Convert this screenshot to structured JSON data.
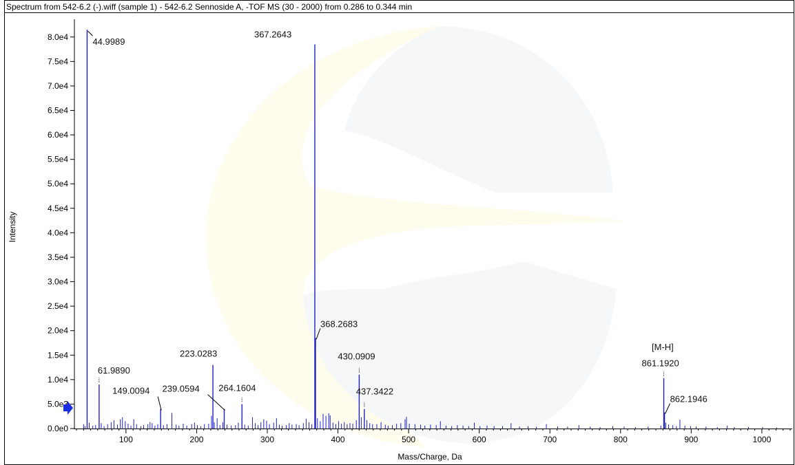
{
  "chart_data": {
    "type": "bar",
    "title": "Spectrum from 542-6.2 (-).wiff (sample 1) - 542-6.2 Sennoside A, -TOF MS (30 - 2000) from 0.286 to 0.344 min",
    "xlabel": "Mass/Charge, Da",
    "ylabel": "Intensity",
    "xlim": [
      27,
      1043
    ],
    "ylim": [
      0,
      82500
    ],
    "x_ticks": [
      100,
      200,
      300,
      400,
      500,
      600,
      700,
      800,
      900,
      1000
    ],
    "x_tick_labels": [
      "100",
      "200",
      "300",
      "400",
      "500",
      "600",
      "700",
      "800",
      "900",
      "1000"
    ],
    "y_ticks": [
      0,
      5000,
      10000,
      15000,
      20000,
      25000,
      30000,
      35000,
      40000,
      45000,
      50000,
      55000,
      60000,
      65000,
      70000,
      75000,
      80000
    ],
    "y_tick_labels": [
      "0.0e0",
      "5.0e3",
      "1.0e4",
      "1.5e4",
      "2.0e4",
      "2.5e4",
      "3.0e4",
      "3.5e4",
      "4.0e4",
      "4.5e4",
      "5.0e4",
      "5.5e4",
      "6.0e4",
      "6.5e4",
      "7.0e4",
      "7.5e4",
      "8.0e4"
    ],
    "grid": false,
    "line_color": "#1f1fc8",
    "labeled_peaks": [
      {
        "mz": 44.9989,
        "intensity": 81500,
        "label": "44.9989"
      },
      {
        "mz": 61.989,
        "intensity": 9000,
        "label": "61.9890"
      },
      {
        "mz": 149.0094,
        "intensity": 4000,
        "label": "149.0094"
      },
      {
        "mz": 223.0283,
        "intensity": 13000,
        "label": "223.0283"
      },
      {
        "mz": 239.0594,
        "intensity": 4000,
        "label": "239.0594"
      },
      {
        "mz": 264.1604,
        "intensity": 5000,
        "label": "264.1604"
      },
      {
        "mz": 367.2643,
        "intensity": 78500,
        "label": "367.2643"
      },
      {
        "mz": 368.2683,
        "intensity": 18500,
        "label": "368.2683"
      },
      {
        "mz": 430.0909,
        "intensity": 11000,
        "label": "430.0909"
      },
      {
        "mz": 437.3422,
        "intensity": 4000,
        "label": "437.3422"
      },
      {
        "mz": 861.192,
        "intensity": 10300,
        "label": "861.1920"
      },
      {
        "mz": 862.1946,
        "intensity": 3300,
        "label": "862.1946"
      }
    ],
    "annotation_text": "[M-H]",
    "minor_peaks": [
      [
        40,
        900
      ],
      [
        42,
        500
      ],
      [
        48,
        1200
      ],
      [
        53,
        600
      ],
      [
        57,
        700
      ],
      [
        65,
        1100
      ],
      [
        69,
        500
      ],
      [
        74,
        900
      ],
      [
        79,
        1300
      ],
      [
        83,
        1700
      ],
      [
        88,
        800
      ],
      [
        92,
        1900
      ],
      [
        95,
        2300
      ],
      [
        99,
        1500
      ],
      [
        103,
        1000
      ],
      [
        107,
        600
      ],
      [
        111,
        1900
      ],
      [
        115,
        900
      ],
      [
        121,
        500
      ],
      [
        125,
        700
      ],
      [
        131,
        900
      ],
      [
        134,
        1300
      ],
      [
        137,
        1100
      ],
      [
        141,
        600
      ],
      [
        145,
        900
      ],
      [
        153,
        700
      ],
      [
        158,
        900
      ],
      [
        165,
        3200
      ],
      [
        171,
        800
      ],
      [
        175,
        600
      ],
      [
        181,
        1000
      ],
      [
        186,
        600
      ],
      [
        193,
        900
      ],
      [
        197,
        1200
      ],
      [
        201,
        700
      ],
      [
        206,
        500
      ],
      [
        211,
        900
      ],
      [
        217,
        1000
      ],
      [
        221,
        2600
      ],
      [
        225,
        1300
      ],
      [
        229,
        2100
      ],
      [
        233,
        700
      ],
      [
        237,
        1300
      ],
      [
        243,
        800
      ],
      [
        249,
        600
      ],
      [
        255,
        700
      ],
      [
        259,
        1200
      ],
      [
        268,
        800
      ],
      [
        273,
        600
      ],
      [
        279,
        2300
      ],
      [
        283,
        1100
      ],
      [
        287,
        700
      ],
      [
        291,
        1300
      ],
      [
        295,
        1900
      ],
      [
        299,
        1600
      ],
      [
        303,
        900
      ],
      [
        309,
        1200
      ],
      [
        313,
        2100
      ],
      [
        317,
        800
      ],
      [
        321,
        600
      ],
      [
        327,
        700
      ],
      [
        331,
        1100
      ],
      [
        335,
        800
      ],
      [
        341,
        900
      ],
      [
        345,
        700
      ],
      [
        351,
        1100
      ],
      [
        355,
        2000
      ],
      [
        359,
        1300
      ],
      [
        363,
        900
      ],
      [
        371,
        2100
      ],
      [
        375,
        1500
      ],
      [
        379,
        3000
      ],
      [
        383,
        2600
      ],
      [
        387,
        3100
      ],
      [
        389,
        2700
      ],
      [
        393,
        1200
      ],
      [
        397,
        900
      ],
      [
        401,
        1500
      ],
      [
        405,
        1000
      ],
      [
        409,
        1300
      ],
      [
        413,
        900
      ],
      [
        417,
        1100
      ],
      [
        421,
        1000
      ],
      [
        426,
        1700
      ],
      [
        433,
        2300
      ],
      [
        441,
        1700
      ],
      [
        445,
        1100
      ],
      [
        449,
        900
      ],
      [
        455,
        900
      ],
      [
        461,
        1300
      ],
      [
        467,
        800
      ],
      [
        471,
        600
      ],
      [
        477,
        700
      ],
      [
        483,
        1000
      ],
      [
        489,
        1100
      ],
      [
        495,
        1900
      ],
      [
        497,
        2400
      ],
      [
        501,
        1000
      ],
      [
        509,
        900
      ],
      [
        517,
        800
      ],
      [
        523,
        600
      ],
      [
        531,
        800
      ],
      [
        539,
        700
      ],
      [
        545,
        1500
      ],
      [
        553,
        600
      ],
      [
        561,
        500
      ],
      [
        569,
        700
      ],
      [
        577,
        600
      ],
      [
        585,
        500
      ],
      [
        593,
        1200
      ],
      [
        601,
        500
      ],
      [
        611,
        600
      ],
      [
        621,
        500
      ],
      [
        633,
        500
      ],
      [
        645,
        1100
      ],
      [
        657,
        400
      ],
      [
        669,
        500
      ],
      [
        681,
        400
      ],
      [
        695,
        900
      ],
      [
        711,
        400
      ],
      [
        725,
        400
      ],
      [
        741,
        700
      ],
      [
        757,
        400
      ],
      [
        771,
        300
      ],
      [
        789,
        500
      ],
      [
        805,
        400
      ],
      [
        821,
        300
      ],
      [
        839,
        400
      ],
      [
        857,
        600
      ],
      [
        864,
        1200
      ],
      [
        868,
        800
      ],
      [
        874,
        700
      ],
      [
        879,
        500
      ],
      [
        884,
        1800
      ],
      [
        891,
        600
      ],
      [
        899,
        500
      ],
      [
        907,
        400
      ],
      [
        921,
        400
      ],
      [
        937,
        300
      ],
      [
        951,
        600
      ],
      [
        961,
        300
      ],
      [
        981,
        300
      ],
      [
        1001,
        300
      ],
      [
        1021,
        200
      ]
    ]
  }
}
